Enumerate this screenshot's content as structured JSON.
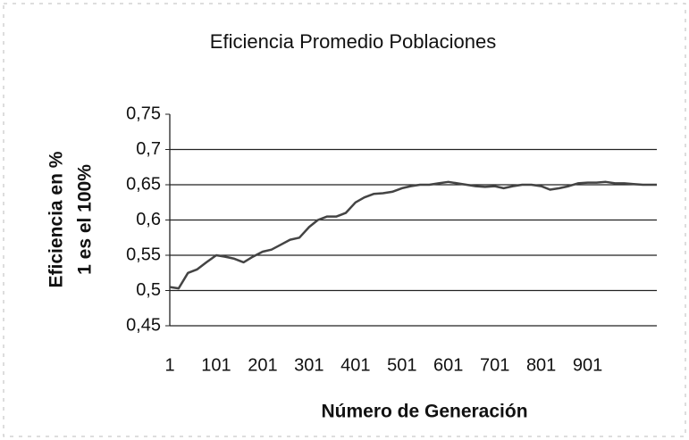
{
  "chart_data": {
    "type": "line",
    "title": "Eficiencia Promedio Poblaciones",
    "ylabel": [
      "Eficiencia en %",
      "1 es el 100%"
    ],
    "xlabel": "Número de Generación",
    "x": [
      1,
      20,
      40,
      60,
      80,
      101,
      120,
      140,
      160,
      180,
      201,
      220,
      240,
      260,
      280,
      301,
      320,
      340,
      360,
      380,
      401,
      420,
      440,
      460,
      480,
      501,
      520,
      540,
      560,
      580,
      601,
      620,
      640,
      660,
      680,
      701,
      720,
      740,
      760,
      780,
      801,
      820,
      840,
      860,
      880,
      901,
      920,
      940,
      960,
      980,
      1000,
      1020,
      1050
    ],
    "series": [
      {
        "color": "#444444",
        "values": [
          0.505,
          0.503,
          0.525,
          0.53,
          0.54,
          0.55,
          0.548,
          0.545,
          0.54,
          0.548,
          0.555,
          0.558,
          0.565,
          0.572,
          0.575,
          0.59,
          0.6,
          0.605,
          0.605,
          0.61,
          0.625,
          0.632,
          0.637,
          0.638,
          0.64,
          0.645,
          0.648,
          0.65,
          0.65,
          0.652,
          0.654,
          0.652,
          0.65,
          0.648,
          0.647,
          0.648,
          0.645,
          0.648,
          0.65,
          0.65,
          0.648,
          0.643,
          0.645,
          0.648,
          0.652,
          0.653,
          0.653,
          0.654,
          0.652,
          0.652,
          0.651,
          0.65,
          0.65
        ]
      }
    ],
    "xlim": [
      1,
      1050
    ],
    "xticks": [
      1,
      101,
      201,
      301,
      401,
      501,
      601,
      701,
      801,
      901
    ],
    "ylim": [
      0.45,
      0.75
    ],
    "yticks": [
      {
        "value": 0.45,
        "label": "0,45"
      },
      {
        "value": 0.5,
        "label": "0,5"
      },
      {
        "value": 0.55,
        "label": "0,55"
      },
      {
        "value": 0.6,
        "label": "0,6"
      },
      {
        "value": 0.65,
        "label": "0,65"
      },
      {
        "value": 0.7,
        "label": "0,7"
      },
      {
        "value": 0.75,
        "label": "0,75"
      }
    ],
    "grid": true
  }
}
